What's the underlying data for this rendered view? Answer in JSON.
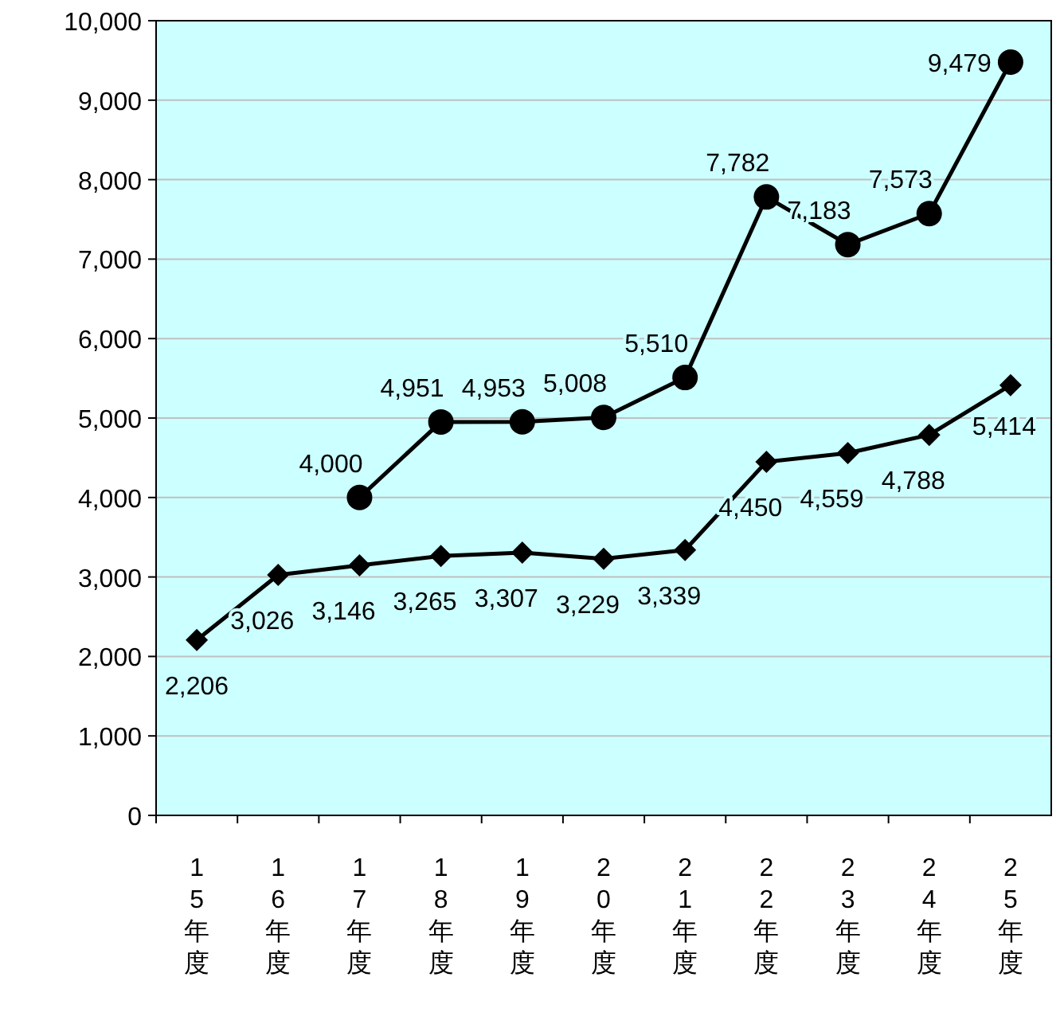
{
  "chart_data": {
    "type": "line",
    "categories": [
      "15年度",
      "16年度",
      "17年度",
      "18年度",
      "19年度",
      "20年度",
      "21年度",
      "22年度",
      "23年度",
      "24年度",
      "25年度"
    ],
    "series": [
      {
        "color": "#000000",
        "marker": "diamond",
        "values": [
          2206,
          3026,
          3146,
          3265,
          3307,
          3229,
          3339,
          4450,
          4559,
          4788,
          5414
        ],
        "value_labels": [
          "2,206",
          "3,026",
          "3,146",
          "3,265",
          "3,307",
          "3,229",
          "3,339",
          "4,450",
          "4,559",
          "4,788",
          "5,414"
        ]
      },
      {
        "color": "#000000",
        "marker": "circle",
        "values": [
          null,
          null,
          4000,
          4951,
          4953,
          5008,
          5510,
          7782,
          7183,
          7573,
          9479
        ],
        "value_labels": [
          null,
          null,
          "4,000",
          "4,951",
          "4,953",
          "5,008",
          "5,510",
          "7,782",
          "7,183",
          "7,573",
          "9,479"
        ]
      }
    ],
    "ylim": [
      0,
      10000
    ],
    "yticks": [
      0,
      {
        "value": 1000,
        "label": "1,000"
      },
      {
        "value": 2000,
        "label": "2,000"
      },
      {
        "value": 3000,
        "label": "3,000"
      },
      {
        "value": 4000,
        "label": "4,000"
      },
      {
        "value": 5000,
        "label": "5,000"
      },
      {
        "value": 6000,
        "label": "6,000"
      },
      {
        "value": 7000,
        "label": "7,000"
      },
      {
        "value": 8000,
        "label": "8,000"
      },
      {
        "value": 9000,
        "label": "9,000"
      },
      {
        "value": 10000,
        "label": "10,000"
      }
    ],
    "grid": "y"
  }
}
